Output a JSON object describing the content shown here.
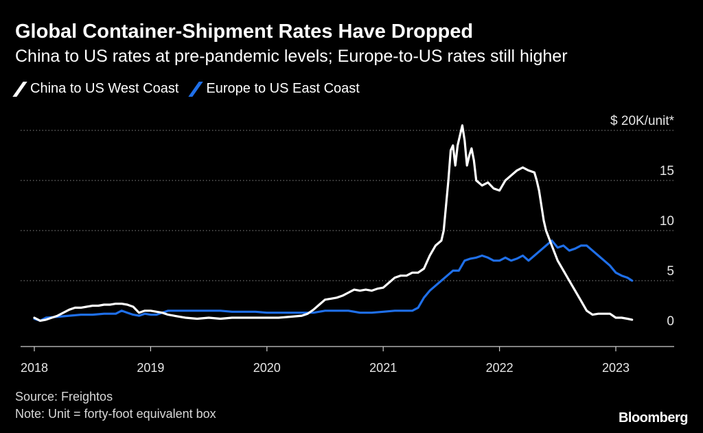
{
  "title": "Global Container-Shipment Rates Have Dropped",
  "subtitle": "China to US rates at pre-pandemic levels; Europe-to-US rates still higher",
  "source": "Source: Freightos",
  "note": "Note: Unit = forty-foot equivalent box",
  "brand": "Bloomberg",
  "colors": {
    "background": "#000000",
    "china": "#ffffff",
    "europe": "#1f6fe8",
    "grid": "#8a8a8a"
  },
  "chart_data": {
    "type": "line",
    "title": "Global Container-Shipment Rates Have Dropped",
    "ylabel": "$ 20K/unit*",
    "y_unit_label": "$ 20K/unit*",
    "ylim": [
      0,
      20
    ],
    "xlim": [
      2018.0,
      2023.5
    ],
    "yticks": [
      0,
      5,
      10,
      15,
      20
    ],
    "ytick_labels": [
      "0",
      "5",
      "10",
      "15",
      "$ 20K/unit*"
    ],
    "xticks": [
      2018,
      2019,
      2020,
      2021,
      2022,
      2023
    ],
    "xtick_labels": [
      "2018",
      "2019",
      "2020",
      "2021",
      "2022",
      "2023"
    ],
    "grid": "horizontal dotted",
    "legend": "top-left",
    "series": [
      {
        "name": "China to US West Coast",
        "color": "#ffffff",
        "x": [
          2018.0,
          2018.05,
          2018.1,
          2018.15,
          2018.2,
          2018.25,
          2018.3,
          2018.35,
          2018.4,
          2018.45,
          2018.5,
          2018.55,
          2018.6,
          2018.65,
          2018.7,
          2018.75,
          2018.8,
          2018.85,
          2018.9,
          2018.95,
          2019.0,
          2019.05,
          2019.1,
          2019.15,
          2019.2,
          2019.3,
          2019.4,
          2019.5,
          2019.6,
          2019.7,
          2019.8,
          2019.9,
          2020.0,
          2020.1,
          2020.2,
          2020.3,
          2020.35,
          2020.4,
          2020.45,
          2020.5,
          2020.55,
          2020.6,
          2020.65,
          2020.7,
          2020.75,
          2020.8,
          2020.85,
          2020.9,
          2020.95,
          2021.0,
          2021.05,
          2021.1,
          2021.15,
          2021.2,
          2021.25,
          2021.3,
          2021.35,
          2021.4,
          2021.45,
          2021.5,
          2021.52,
          2021.54,
          2021.56,
          2021.58,
          2021.6,
          2021.62,
          2021.64,
          2021.66,
          2021.68,
          2021.7,
          2021.72,
          2021.74,
          2021.76,
          2021.78,
          2021.8,
          2021.85,
          2021.9,
          2021.95,
          2022.0,
          2022.05,
          2022.1,
          2022.15,
          2022.2,
          2022.25,
          2022.3,
          2022.32,
          2022.34,
          2022.36,
          2022.38,
          2022.4,
          2022.45,
          2022.5,
          2022.55,
          2022.6,
          2022.65,
          2022.7,
          2022.75,
          2022.8,
          2022.85,
          2022.9,
          2022.95,
          2023.0,
          2023.05,
          2023.1,
          2023.14
        ],
        "values": [
          1.3,
          1.0,
          1.1,
          1.3,
          1.5,
          1.8,
          2.1,
          2.3,
          2.3,
          2.4,
          2.5,
          2.5,
          2.6,
          2.6,
          2.7,
          2.7,
          2.6,
          2.4,
          1.8,
          2.0,
          2.0,
          1.9,
          1.8,
          1.6,
          1.5,
          1.3,
          1.2,
          1.3,
          1.2,
          1.3,
          1.3,
          1.3,
          1.3,
          1.3,
          1.4,
          1.5,
          1.7,
          2.1,
          2.6,
          3.1,
          3.2,
          3.3,
          3.5,
          3.8,
          4.1,
          4.0,
          4.1,
          4.0,
          4.2,
          4.3,
          4.8,
          5.3,
          5.5,
          5.5,
          5.8,
          5.8,
          6.2,
          7.5,
          8.5,
          9.0,
          10.0,
          12.5,
          15.0,
          18.0,
          18.5,
          16.5,
          18.5,
          19.5,
          20.5,
          19.0,
          16.5,
          17.5,
          18.2,
          17.0,
          15.0,
          14.5,
          14.8,
          14.2,
          14.0,
          15.0,
          15.5,
          16.0,
          16.3,
          16.0,
          15.8,
          15.0,
          14.0,
          12.5,
          11.0,
          10.0,
          8.5,
          7.0,
          6.0,
          5.0,
          4.0,
          3.0,
          2.0,
          1.6,
          1.7,
          1.7,
          1.7,
          1.3,
          1.3,
          1.2,
          1.1
        ]
      },
      {
        "name": "Europe to US East Coast",
        "color": "#1f6fe8",
        "x": [
          2018.0,
          2018.05,
          2018.1,
          2018.2,
          2018.3,
          2018.4,
          2018.5,
          2018.6,
          2018.7,
          2018.75,
          2018.8,
          2018.85,
          2018.9,
          2018.95,
          2019.0,
          2019.05,
          2019.1,
          2019.15,
          2019.2,
          2019.3,
          2019.4,
          2019.5,
          2019.6,
          2019.7,
          2019.8,
          2019.9,
          2020.0,
          2020.1,
          2020.2,
          2020.3,
          2020.4,
          2020.5,
          2020.6,
          2020.7,
          2020.8,
          2020.9,
          2021.0,
          2021.1,
          2021.2,
          2021.25,
          2021.3,
          2021.35,
          2021.4,
          2021.45,
          2021.5,
          2021.55,
          2021.6,
          2021.65,
          2021.7,
          2021.75,
          2021.8,
          2021.85,
          2021.9,
          2021.95,
          2022.0,
          2022.05,
          2022.1,
          2022.15,
          2022.2,
          2022.25,
          2022.3,
          2022.35,
          2022.4,
          2022.45,
          2022.5,
          2022.55,
          2022.6,
          2022.65,
          2022.7,
          2022.75,
          2022.8,
          2022.85,
          2022.9,
          2022.95,
          2023.0,
          2023.05,
          2023.1,
          2023.14
        ],
        "values": [
          1.2,
          1.0,
          1.3,
          1.4,
          1.5,
          1.6,
          1.6,
          1.7,
          1.7,
          2.0,
          1.8,
          1.6,
          1.5,
          1.7,
          1.6,
          1.6,
          1.8,
          2.0,
          2.0,
          2.0,
          2.0,
          2.0,
          2.0,
          1.9,
          1.9,
          1.9,
          1.8,
          1.8,
          1.8,
          1.8,
          1.8,
          2.0,
          2.0,
          2.0,
          1.8,
          1.8,
          1.9,
          2.0,
          2.0,
          2.0,
          2.3,
          3.3,
          4.0,
          4.5,
          5.0,
          5.5,
          6.0,
          6.0,
          7.0,
          7.2,
          7.3,
          7.5,
          7.3,
          7.0,
          7.0,
          7.3,
          7.0,
          7.2,
          7.5,
          7.0,
          7.5,
          8.0,
          8.5,
          9.0,
          8.3,
          8.5,
          8.0,
          8.2,
          8.5,
          8.5,
          8.0,
          7.5,
          7.0,
          6.5,
          5.8,
          5.5,
          5.3,
          5.0
        ]
      }
    ]
  }
}
